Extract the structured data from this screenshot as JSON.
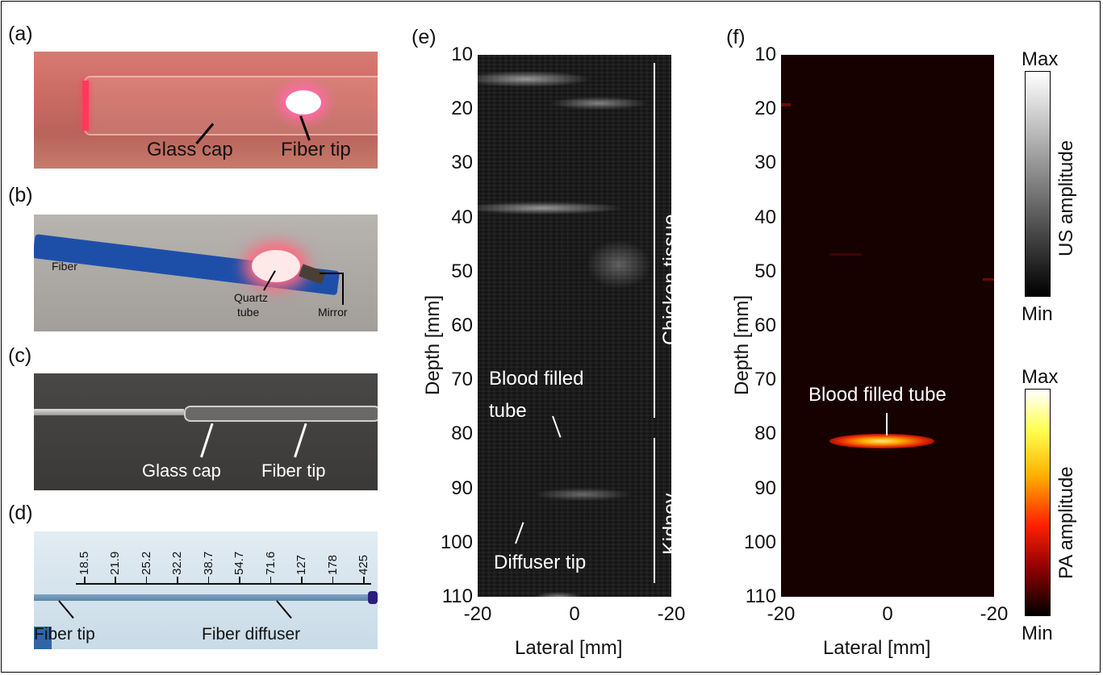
{
  "panels": {
    "a": {
      "label": "(a)",
      "annotations": [
        "Glass cap",
        "Fiber tip"
      ]
    },
    "b": {
      "label": "(b)",
      "annotations": [
        "Fiber",
        "Quartz",
        "tube",
        "Mirror"
      ]
    },
    "c": {
      "label": "(c)",
      "annotations": [
        "Glass cap",
        "Fiber tip"
      ]
    },
    "d": {
      "label": "(d)",
      "ruler_values": [
        "18.5",
        "21.9",
        "25.2",
        "32.2",
        "38.7",
        "54.7",
        "71.6",
        "127",
        "178",
        "425"
      ],
      "annotations": [
        "Fiber tip",
        "Fiber diffuser"
      ]
    },
    "e": {
      "label": "(e)",
      "ylabel": "Depth [mm]",
      "xlabel": "Lateral [mm]",
      "annotations": {
        "blood1": "Blood filled",
        "blood2": "tube",
        "diffuser": "Diffuser tip",
        "chicken": "Chicken tissue",
        "kidney": "Kidney"
      }
    },
    "f": {
      "label": "(f)",
      "ylabel": "Depth [mm]",
      "xlabel": "Lateral [mm]",
      "annotations": {
        "blood": "Blood filled tube"
      }
    }
  },
  "axes": {
    "yticks": [
      "10",
      "20",
      "30",
      "40",
      "50",
      "60",
      "70",
      "80",
      "90",
      "100",
      "110"
    ],
    "xticks": [
      "-20",
      "0",
      "-20"
    ]
  },
  "colorbars": {
    "us": {
      "label": "US amplitude",
      "max": "Max",
      "min": "Min"
    },
    "pa": {
      "label": "PA amplitude",
      "max": "Max",
      "min": "Min"
    }
  }
}
